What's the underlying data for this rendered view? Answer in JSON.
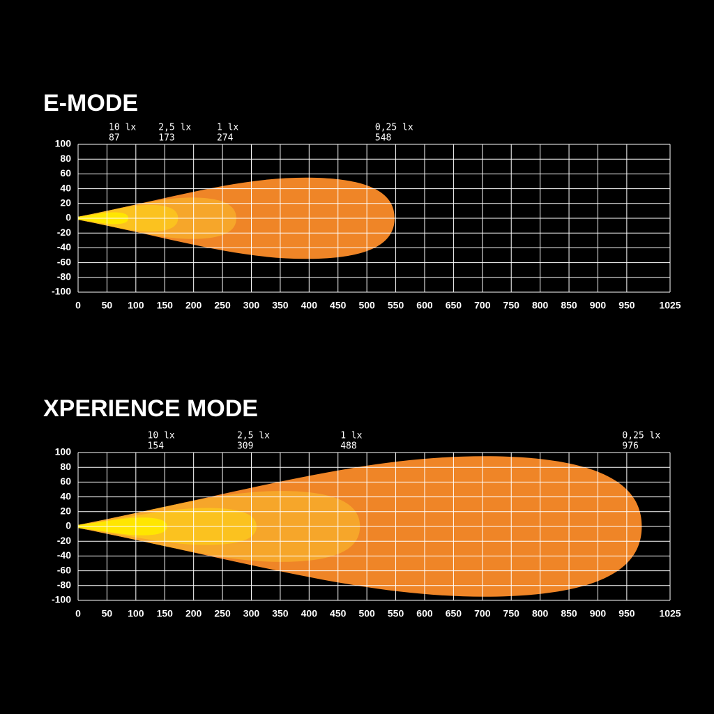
{
  "chart_data": [
    {
      "type": "beam",
      "title": "E-MODE",
      "series": [
        {
          "name": "0,25 lx",
          "distance": 548,
          "half_width": 55,
          "color": "#ef8527"
        },
        {
          "name": "1 lx",
          "distance": 274,
          "half_width": 28,
          "color": "#f6a62a"
        },
        {
          "name": "2,5 lx",
          "distance": 173,
          "half_width": 18,
          "color": "#fbc21f"
        },
        {
          "name": "10 lx",
          "distance": 87,
          "half_width": 8,
          "color": "#ffe600"
        }
      ],
      "xlim": [
        0,
        1025
      ],
      "xticks": [
        0,
        50,
        100,
        150,
        200,
        250,
        300,
        350,
        400,
        450,
        500,
        550,
        600,
        650,
        700,
        750,
        800,
        850,
        900,
        950,
        1025
      ],
      "ylim": [
        -100,
        100
      ],
      "yticks": [
        100,
        80,
        60,
        40,
        20,
        0,
        -20,
        -40,
        -60,
        -80,
        -100
      ],
      "grid": true
    },
    {
      "type": "beam",
      "title": "XPERIENCE MODE",
      "series": [
        {
          "name": "0,25 lx",
          "distance": 976,
          "half_width": 95,
          "color": "#ef8527"
        },
        {
          "name": "1 lx",
          "distance": 488,
          "half_width": 48,
          "color": "#f6a62a"
        },
        {
          "name": "2,5 lx",
          "distance": 309,
          "half_width": 25,
          "color": "#fbc21f"
        },
        {
          "name": "10 lx",
          "distance": 154,
          "half_width": 12,
          "color": "#ffe600"
        }
      ],
      "xlim": [
        0,
        1025
      ],
      "xticks": [
        0,
        50,
        100,
        150,
        200,
        250,
        300,
        350,
        400,
        450,
        500,
        550,
        600,
        650,
        700,
        750,
        800,
        850,
        900,
        950,
        1025
      ],
      "ylim": [
        -100,
        100
      ],
      "yticks": [
        100,
        80,
        60,
        40,
        20,
        0,
        -20,
        -40,
        -60,
        -80,
        -100
      ],
      "grid": true
    }
  ]
}
